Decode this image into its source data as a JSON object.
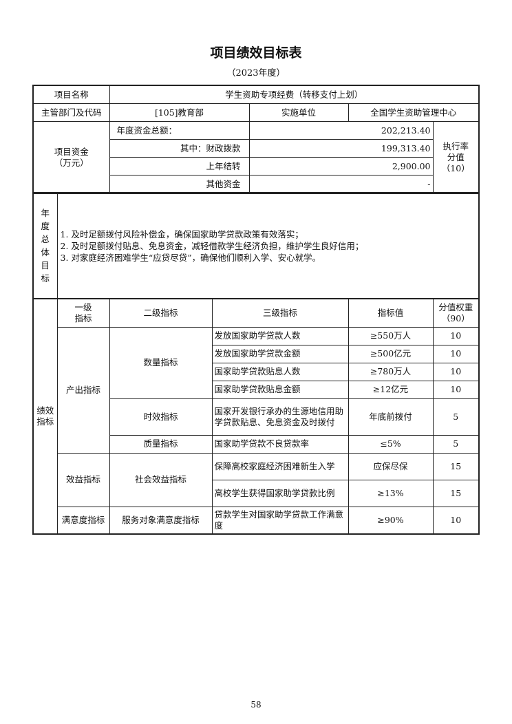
{
  "title": "项目绩效目标表",
  "subtitle": "（2023年度）",
  "project": {
    "name_label": "项目名称",
    "name": "学生资助专项经费（转移支付上划）",
    "dept_label": "主管部门及代码",
    "dept": "[105]教育部",
    "impl_label": "实施单位",
    "impl": "全国学生资助管理中心",
    "funds_label": "项目资金\n（万元）",
    "funds": [
      {
        "label": "年度资金总额：",
        "value": "202,213.40"
      },
      {
        "label": "其中：财政拨款",
        "value": "199,313.40"
      },
      {
        "label": "上年结转",
        "value": "2,900.00"
      },
      {
        "label": "其他资金",
        "value": "-"
      }
    ],
    "exec_label": "执行率\n分值\n（10）"
  },
  "goals": {
    "label": "年\n度\n总\n体\n目\n标",
    "lines": [
      "1. 及时足额拨付风险补偿金，确保国家助学贷款政策有效落实；",
      "2. 及时足额拨付贴息、免息资金，减轻借款学生经济负担，维护学生良好信用；",
      "3. 对家庭经济困难学生“应贷尽贷”，确保他们顺利入学、安心就学。"
    ]
  },
  "indicators": {
    "section_label": "绩效\n指标",
    "headers": [
      "一级\n指标",
      "二级指标",
      "三级指标",
      "指标值",
      "分值权重\n（90）"
    ],
    "level1": [
      "产出指标",
      "效益指标",
      "满意度指标"
    ],
    "level2": [
      "数量指标",
      "时效指标",
      "质量指标",
      "社会效益指标",
      "服务对象满意度指标"
    ],
    "rows": [
      {
        "name": "发放国家助学贷款人数",
        "value": "≥550万人",
        "score": "10"
      },
      {
        "name": "发放国家助学贷款金额",
        "value": "≥500亿元",
        "score": "10"
      },
      {
        "name": "国家助学贷款贴息人数",
        "value": "≥780万人",
        "score": "10"
      },
      {
        "name": "国家助学贷款贴息金额",
        "value": "≥12亿元",
        "score": "10"
      },
      {
        "name": "国家开发银行承办的生源地信用助学贷款贴息、免息资金及时拨付",
        "value": "年底前拨付",
        "score": "5"
      },
      {
        "name": "国家助学贷款不良贷款率",
        "value": "≤5%",
        "score": "5"
      },
      {
        "name": "保障高校家庭经济困难新生入学",
        "value": "应保尽保",
        "score": "15"
      },
      {
        "name": "高校学生获得国家助学贷款比例",
        "value": "≥13%",
        "score": "15"
      },
      {
        "name": "贷款学生对国家助学贷款工作满意度",
        "value": "≥90%",
        "score": "10"
      }
    ]
  },
  "page_number": "58"
}
